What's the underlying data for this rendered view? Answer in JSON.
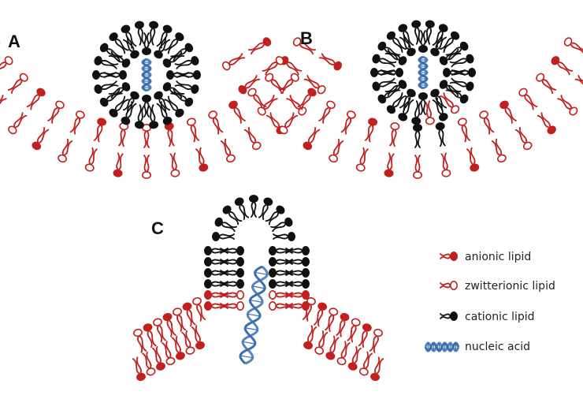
{
  "colors": {
    "anionic": "#c0201e",
    "zwitterionic": "#c0201e",
    "cationic": "#111111",
    "nucleic": "#3a6fb0"
  },
  "panels": [
    {
      "label": "A"
    },
    {
      "label": "B"
    },
    {
      "label": "C"
    }
  ],
  "legend": [
    {
      "icon": "anionic-lipid-icon",
      "label": "anionic lipid"
    },
    {
      "icon": "zwitterionic-lipid-icon",
      "label": "zwitterionic lipid"
    },
    {
      "icon": "cationic-lipid-icon",
      "label": "cationic lipid"
    },
    {
      "icon": "nucleic-acid-icon",
      "label": "nucleic acid"
    }
  ]
}
